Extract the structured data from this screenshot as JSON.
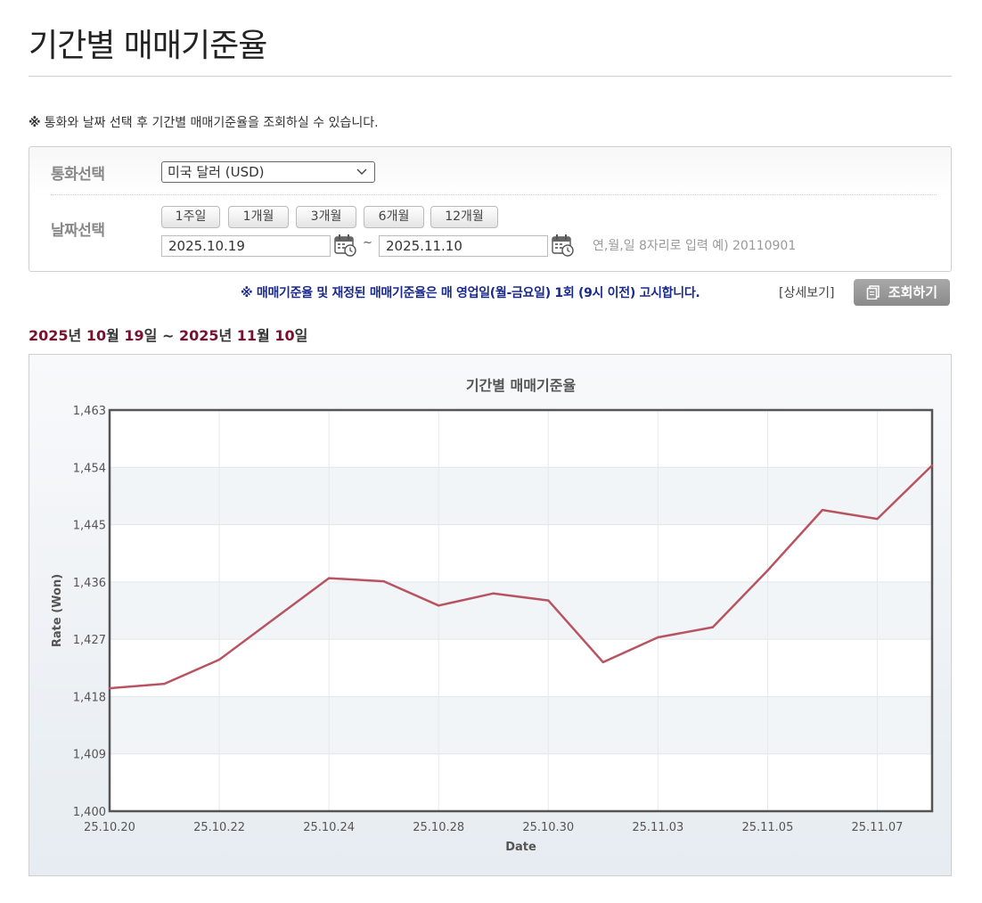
{
  "page": {
    "title": "기간별 매매기준율",
    "notice_mark": "※",
    "notice": "통화와 날짜 선택 후 기간별 매매기준율을 조회하실 수 있습니다."
  },
  "filter": {
    "currency_label": "통화선택",
    "currency_value": "미국 달러 (USD)",
    "date_label": "날짜선택",
    "period_buttons": [
      "1주일",
      "1개월",
      "3개월",
      "6개월",
      "12개월"
    ],
    "start_date": "2025.10.19",
    "end_date": "2025.11.10",
    "tilde": "~",
    "date_hint": "연,월,일 8자리로 입력 예) 20110901"
  },
  "notice2": "※ 매매기준율 및 재정된 매매기준율은 매 영업일(월-금요일) 1회 (9시 이전) 고시합니다.",
  "detail_link": "[상세보기]",
  "search_button": "조회하기",
  "range": {
    "y1": "2025",
    "u_year": "년 ",
    "m1": "10",
    "u_month": "월 ",
    "d1": "19",
    "u_day": "일",
    "sep": " ~ ",
    "y2": "2025",
    "m2": "11",
    "d2": "10"
  },
  "colors": {
    "line": "#b85462",
    "accent": "#7a1030",
    "notice2": "#1a2a8a"
  },
  "icons": {
    "calendar": "calendar-icon",
    "chevron": "chevron-down-icon",
    "doc": "document-icon"
  },
  "chart_data": {
    "type": "line",
    "title": "기간별 매매기준율",
    "xlabel": "Date",
    "ylabel": "Rate (Won)",
    "ylim": [
      1400,
      1463
    ],
    "yticks": [
      "1,400",
      "1,409",
      "1,418",
      "1,427",
      "1,436",
      "1,445",
      "1,454",
      "1,463"
    ],
    "xtick_labels": [
      "25.10.20",
      "25.10.22",
      "25.10.24",
      "25.10.28",
      "25.10.30",
      "25.11.03",
      "25.11.05",
      "25.11.07"
    ],
    "grid": true,
    "legend": "none",
    "series": [
      {
        "x": [
          "25.10.20",
          "25.10.21",
          "25.10.22",
          "25.10.23",
          "25.10.24",
          "25.10.27",
          "25.10.28",
          "25.10.29",
          "25.10.30",
          "25.10.31",
          "25.11.03",
          "25.11.04",
          "25.11.05",
          "25.11.06",
          "25.11.07",
          "25.11.10"
        ],
        "values": [
          1419.3,
          1420.0,
          1423.8,
          1430.2,
          1436.6,
          1436.1,
          1432.3,
          1434.2,
          1433.1,
          1423.4,
          1427.3,
          1428.9,
          1437.8,
          1447.3,
          1445.9,
          1454.3
        ]
      }
    ]
  }
}
